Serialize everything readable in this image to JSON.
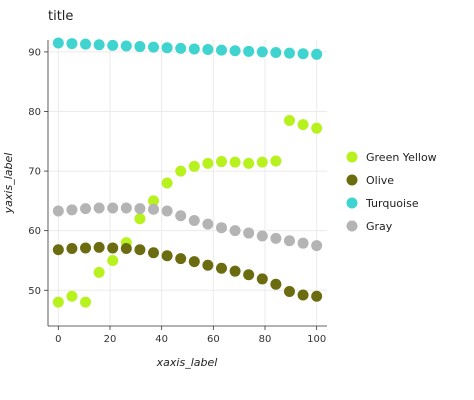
{
  "chart_data": {
    "type": "scatter",
    "title": "title",
    "xlabel": "xaxis_label",
    "ylabel": "yaxis_label",
    "xlim": [
      -4,
      104
    ],
    "ylim": [
      44,
      92
    ],
    "x_ticks": [
      0,
      20,
      40,
      60,
      80,
      100
    ],
    "y_ticks": [
      50,
      60,
      70,
      80,
      90
    ],
    "grid": true,
    "legend": "right",
    "series": [
      {
        "name": "Turquoise",
        "color": "#3FD4D0",
        "x": [
          0,
          5.26,
          10.53,
          15.79,
          21.05,
          26.32,
          31.58,
          36.84,
          42.11,
          47.37,
          52.63,
          57.89,
          63.16,
          68.42,
          73.68,
          78.95,
          84.21,
          89.47,
          94.74,
          100
        ],
        "y": [
          91.5,
          91.4,
          91.3,
          91.2,
          91.1,
          91.0,
          90.9,
          90.8,
          90.7,
          90.6,
          90.5,
          90.4,
          90.3,
          90.2,
          90.1,
          90.0,
          89.9,
          89.8,
          89.7,
          89.6
        ]
      },
      {
        "name": "Green Yellow",
        "color": "#B8F21E",
        "x": [
          0,
          5.26,
          10.53,
          15.79,
          21.05,
          26.32,
          31.58,
          36.84,
          42.11,
          47.37,
          52.63,
          57.89,
          63.16,
          68.42,
          73.68,
          78.95,
          84.21,
          89.47,
          94.74,
          100
        ],
        "y": [
          48.0,
          49.0,
          48.0,
          53.0,
          55.0,
          58.0,
          62.0,
          65.0,
          68.0,
          70.0,
          70.8,
          71.3,
          71.6,
          71.5,
          71.3,
          71.5,
          71.7,
          78.5,
          77.8,
          77.2
        ]
      },
      {
        "name": "Gray",
        "color": "#B4B4B4",
        "x": [
          0,
          5.26,
          10.53,
          15.79,
          21.05,
          26.32,
          31.58,
          36.84,
          42.11,
          47.37,
          52.63,
          57.89,
          63.16,
          68.42,
          73.68,
          78.95,
          84.21,
          89.47,
          94.74,
          100
        ],
        "y": [
          63.3,
          63.5,
          63.7,
          63.8,
          63.8,
          63.8,
          63.7,
          63.6,
          63.3,
          62.5,
          61.7,
          61.1,
          60.5,
          60.0,
          59.6,
          59.1,
          58.7,
          58.3,
          57.9,
          57.5
        ]
      },
      {
        "name": "Olive",
        "color": "#6B6B10",
        "x": [
          0,
          5.26,
          10.53,
          15.79,
          21.05,
          26.32,
          31.58,
          36.84,
          42.11,
          47.37,
          52.63,
          57.89,
          63.16,
          68.42,
          73.68,
          78.95,
          84.21,
          89.47,
          94.74,
          100
        ],
        "y": [
          56.8,
          57.0,
          57.1,
          57.2,
          57.1,
          57.0,
          56.8,
          56.3,
          55.8,
          55.3,
          54.8,
          54.2,
          53.7,
          53.2,
          52.6,
          51.9,
          51.0,
          49.8,
          49.2,
          49.0
        ]
      }
    ]
  }
}
